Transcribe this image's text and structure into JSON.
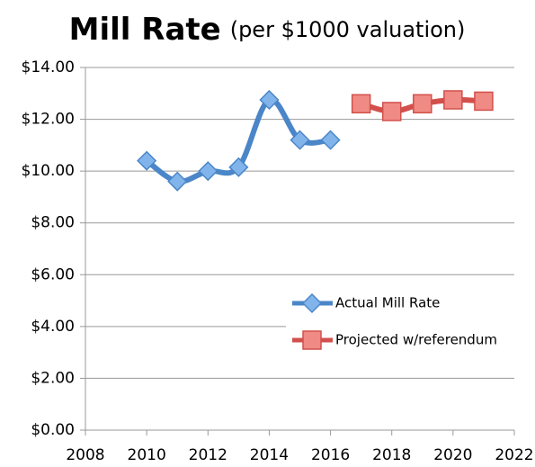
{
  "chart_data": {
    "type": "line",
    "title": "Mill Rate",
    "subtitle": "(per $1000 valuation)",
    "x": [
      2010,
      2011,
      2012,
      2013,
      2014,
      2015,
      2016,
      2017,
      2018,
      2019,
      2020,
      2021
    ],
    "series": [
      {
        "name": "Actual Mill Rate",
        "color": "#4a86c8",
        "marker": "diamond",
        "values": [
          10.4,
          9.6,
          10.0,
          10.15,
          12.75,
          11.2,
          11.2,
          null,
          null,
          null,
          null,
          null
        ]
      },
      {
        "name": "Projected w/referendum",
        "color": "#d2504c",
        "marker": "square",
        "values": [
          null,
          null,
          null,
          null,
          null,
          null,
          null,
          12.6,
          12.3,
          12.6,
          12.75,
          12.7
        ]
      }
    ],
    "xlim": [
      2008,
      2022
    ],
    "xticks": [
      2008,
      2010,
      2012,
      2014,
      2016,
      2018,
      2020,
      2022
    ],
    "ylim": [
      0,
      14
    ],
    "yticks": [
      {
        "value": 0,
        "label": "$0.00"
      },
      {
        "value": 2,
        "label": "$2.00"
      },
      {
        "value": 4,
        "label": "$4.00"
      },
      {
        "value": 6,
        "label": "$6.00"
      },
      {
        "value": 8,
        "label": "$8.00"
      },
      {
        "value": 10,
        "label": "$10.00"
      },
      {
        "value": 12,
        "label": "$12.00"
      },
      {
        "value": 14,
        "label": "$14.00"
      }
    ],
    "grid": true,
    "legend": "center-right"
  }
}
